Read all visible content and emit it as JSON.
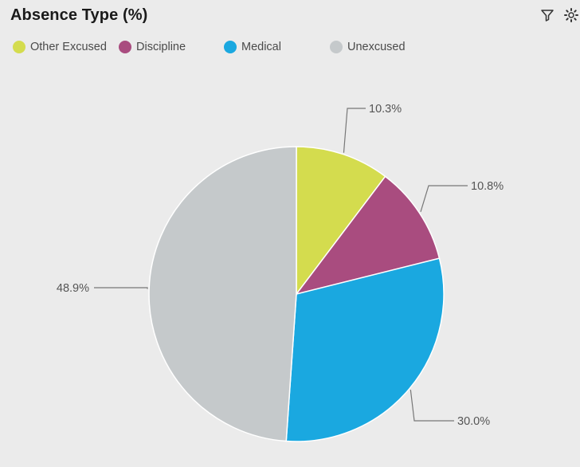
{
  "widget": {
    "title": "Absence Type (%)",
    "toolbar": {
      "filter_icon": "filter-icon",
      "settings_icon": "settings-icon"
    }
  },
  "chart_data": {
    "type": "pie",
    "title": "Absence Type (%)",
    "legend_position": "top-left",
    "slices": [
      {
        "name": "Other Excused",
        "value": 10.3,
        "label": "10.3%",
        "color": "#d4dc4e"
      },
      {
        "name": "Discipline",
        "value": 10.8,
        "label": "10.8%",
        "color": "#a94c7f"
      },
      {
        "name": "Medical",
        "value": 30.0,
        "label": "30.0%",
        "color": "#1aa8e0"
      },
      {
        "name": "Unexcused",
        "value": 48.9,
        "label": "48.9%",
        "color": "#c5c9cb"
      }
    ]
  }
}
